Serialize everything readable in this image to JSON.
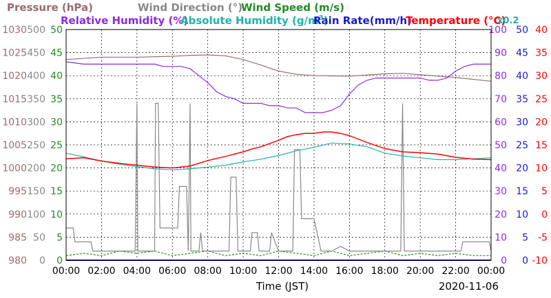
{
  "chart_data": {
    "type": "line",
    "date": "2020-11-06",
    "xlabel": "Time (JST)",
    "x_ticks": [
      "00:00",
      "02:00",
      "04:00",
      "06:00",
      "08:00",
      "10:00",
      "12:00",
      "14:00",
      "16:00",
      "18:00",
      "20:00",
      "22:00",
      "00:00"
    ],
    "x_range_hours": [
      0,
      24
    ],
    "grid": true,
    "legend_row1": [
      {
        "text": "Pressure (hPa)",
        "color": "#9b6b6b"
      },
      {
        "text": "Wind Direction (°)",
        "color": "#888888"
      },
      {
        "text": "Wind Speed (m/s)",
        "color": "#228b22"
      }
    ],
    "legend_row2": [
      {
        "text": "Relative Humidity (%)",
        "color": "#8a2be2"
      },
      {
        "text": "Absolute Humidity (g/m",
        "sup": "3",
        "close": ")",
        "color": "#20b2aa"
      },
      {
        "text": "Rain Rate(mm/h)",
        "color": "#1a1acd"
      },
      {
        "text": "Temperature (°C)",
        "color": "#ff0000"
      }
    ],
    "scale_note": {
      "text": "x0.2",
      "color": "#20b2aa"
    },
    "left_axes": [
      {
        "name": "Pressure",
        "color": "#9b6b6b",
        "ticks": [
          980,
          985,
          990,
          995,
          1000,
          1005,
          1010,
          1015,
          1020,
          1025,
          1030
        ]
      },
      {
        "name": "Wind Direction",
        "color": "#888888",
        "ticks": [
          0,
          50,
          100,
          150,
          200,
          250,
          300,
          350,
          400,
          450,
          500
        ]
      },
      {
        "name": "Wind Speed",
        "color": "#228b22",
        "ticks": [
          0,
          5,
          10,
          15,
          20,
          25,
          30,
          35,
          40,
          45,
          50
        ]
      }
    ],
    "right_axes": [
      {
        "name": "Relative Humidity",
        "color": "#8a2be2",
        "ticks": [
          0,
          10,
          20,
          30,
          40,
          50,
          60,
          70,
          80,
          90,
          100
        ]
      },
      {
        "name": "Rain Rate",
        "color": "#1a1acd",
        "ticks": [
          0,
          5,
          10,
          15,
          20,
          25,
          30,
          35,
          40,
          45,
          50
        ]
      },
      {
        "name": "Temperature",
        "color": "#ff0000",
        "ticks": [
          -10,
          -5,
          0,
          5,
          10,
          15,
          20,
          25,
          30,
          35,
          40
        ]
      }
    ],
    "series": [
      {
        "name": "Pressure",
        "axis": "Pressure",
        "color": "#9b6b6b",
        "x": [
          0,
          2,
          4,
          6,
          7,
          8,
          9,
          10,
          11,
          12,
          13,
          14,
          16,
          18,
          19,
          20,
          22,
          24
        ],
        "y": [
          1023.5,
          1024,
          1024,
          1024.2,
          1024.4,
          1024.5,
          1024.3,
          1023.5,
          1022.3,
          1021,
          1020.3,
          1020,
          1019.9,
          1020.4,
          1020.5,
          1020.2,
          1019.6,
          1018.8
        ]
      },
      {
        "name": "Wind Direction",
        "axis": "Wind Direction",
        "color": "#888888",
        "x": [
          0,
          0.4,
          0.5,
          1.4,
          1.5,
          2,
          3,
          3.9,
          4,
          4.05,
          4.1,
          5,
          5.05,
          5.2,
          5.3,
          6.3,
          6.4,
          6.8,
          6.9,
          7,
          7.05,
          7.2,
          7.3,
          7.5,
          7.6,
          7.7,
          8,
          8.5,
          9,
          9.2,
          9.3,
          9.6,
          9.7,
          10,
          10.4,
          10.5,
          10.8,
          10.9,
          11,
          11.5,
          11.6,
          12,
          12.5,
          12.8,
          12.9,
          13.2,
          13.3,
          14,
          14.4,
          14.5,
          15,
          15.5,
          16,
          16.5,
          17,
          17.5,
          18,
          18.5,
          18.9,
          19,
          19.1,
          19.5,
          20,
          21,
          22,
          22.3,
          22.4,
          23.8,
          23.9,
          24
        ],
        "y": [
          70,
          70,
          40,
          40,
          20,
          20,
          20,
          20,
          340,
          20,
          20,
          20,
          340,
          340,
          70,
          70,
          160,
          160,
          20,
          340,
          20,
          20,
          20,
          20,
          60,
          20,
          20,
          20,
          20,
          20,
          180,
          180,
          20,
          20,
          20,
          60,
          60,
          20,
          20,
          20,
          60,
          20,
          20,
          20,
          240,
          240,
          90,
          90,
          20,
          20,
          20,
          30,
          20,
          20,
          20,
          20,
          20,
          20,
          20,
          340,
          20,
          20,
          20,
          20,
          20,
          20,
          40,
          40,
          40,
          20
        ]
      },
      {
        "name": "Wind Speed",
        "axis": "Wind Speed",
        "color": "#228b22",
        "x": [
          0,
          1,
          2,
          3,
          4,
          5,
          6,
          7,
          8,
          9,
          10,
          11,
          12,
          13,
          14,
          15,
          16,
          17,
          18,
          19,
          20,
          21,
          22,
          23,
          24
        ],
        "y": [
          1,
          1.5,
          1,
          2,
          1.5,
          2,
          1,
          1.5,
          2,
          1,
          1.5,
          1,
          2,
          1.5,
          1,
          2,
          1,
          1.5,
          2,
          1,
          1.5,
          1,
          1.5,
          1,
          1
        ]
      },
      {
        "name": "Relative Humidity",
        "axis": "Relative Humidity",
        "color": "#8a2be2",
        "x": [
          0,
          1,
          2,
          3,
          4,
          5,
          5.5,
          6,
          6.5,
          7,
          7.5,
          8,
          8.5,
          9,
          9.5,
          10,
          10.5,
          11,
          11.5,
          12,
          12.5,
          13,
          13.5,
          14,
          14.5,
          15,
          15.5,
          16,
          16.5,
          17,
          17.5,
          18,
          18.5,
          19,
          19.5,
          20,
          20.5,
          21,
          21.5,
          22,
          22.5,
          23,
          23.5,
          24
        ],
        "y": [
          86,
          85,
          85,
          85,
          85,
          85,
          84,
          84,
          84,
          83,
          80,
          77,
          73,
          71,
          70,
          68,
          68,
          68,
          67,
          67,
          66,
          66,
          64,
          64,
          64,
          65,
          67,
          72,
          76,
          78,
          79,
          79,
          79,
          79,
          79,
          79,
          78,
          78,
          79,
          82,
          84,
          85,
          85,
          85
        ]
      },
      {
        "name": "Absolute Humidity",
        "axis": "Wind Speed",
        "color": "#20b2aa",
        "x": [
          0,
          1,
          2,
          3,
          4,
          5,
          6,
          7,
          8,
          9,
          10,
          11,
          12,
          13,
          14,
          15,
          16,
          17,
          18,
          19,
          20,
          21,
          22,
          23,
          24
        ],
        "y": [
          23.2,
          22.4,
          21.5,
          20.8,
          20.3,
          19.8,
          19.6,
          19.8,
          20.2,
          20.6,
          21.3,
          21.9,
          22.7,
          23.7,
          24.5,
          25.4,
          25.2,
          24.6,
          23.2,
          22.6,
          22.2,
          21.8,
          21.8,
          22,
          22.2
        ]
      },
      {
        "name": "Rain Rate",
        "axis": "Rain Rate",
        "color": "#1a1acd",
        "x": [
          0,
          24
        ],
        "y": [
          0,
          0
        ]
      },
      {
        "name": "Temperature",
        "axis": "Temperature",
        "color": "#ff0000",
        "x": [
          0,
          1,
          2,
          3,
          4,
          5,
          6,
          7,
          8,
          9,
          10,
          10.5,
          11,
          12,
          12.5,
          13,
          13.5,
          14,
          14.5,
          15,
          15.5,
          16,
          17,
          18,
          19,
          20,
          21,
          22,
          23,
          24
        ],
        "y": [
          12,
          12.2,
          11.5,
          11,
          10.6,
          10.2,
          10,
          10.4,
          11.6,
          12.5,
          13.5,
          14.1,
          14.6,
          16,
          16.8,
          17.2,
          17.5,
          17.5,
          17.8,
          17.8,
          17.5,
          17,
          15.5,
          14.2,
          13.5,
          13.3,
          13,
          12.3,
          11.9,
          11.8
        ]
      }
    ]
  }
}
